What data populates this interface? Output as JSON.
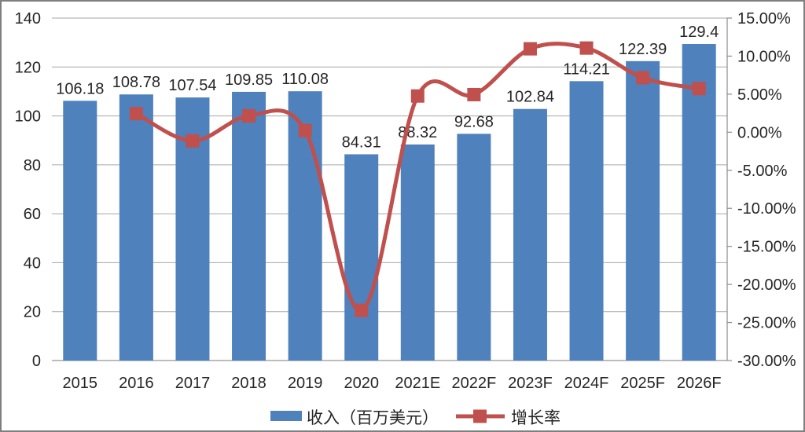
{
  "chart_data": {
    "type": "bar",
    "combo": "bar+line",
    "title": "",
    "categories": [
      "2015",
      "2016",
      "2017",
      "2018",
      "2019",
      "2020",
      "2021E",
      "2022F",
      "2023F",
      "2024F",
      "2025F",
      "2026F"
    ],
    "series": [
      {
        "name": "收入（百万美元）",
        "type": "bar",
        "axis": "left",
        "color": "#4f81bd",
        "values": [
          106.18,
          108.78,
          107.54,
          109.85,
          110.08,
          84.31,
          88.32,
          92.68,
          102.84,
          114.21,
          122.39,
          129.4
        ],
        "labels": [
          "106.18",
          "108.78",
          "107.54",
          "109.85",
          "110.08",
          "84.31",
          "88.32",
          "92.68",
          "102.84",
          "114.21",
          "122.39",
          "129.4"
        ]
      },
      {
        "name": "增长率",
        "type": "line",
        "axis": "right",
        "color": "#c0504d",
        "smooth": true,
        "marker": "square",
        "values": [
          null,
          2.45,
          -1.14,
          2.15,
          0.21,
          -23.41,
          4.76,
          4.94,
          10.96,
          11.06,
          7.16,
          5.73
        ]
      }
    ],
    "left_axis": {
      "min": 0,
      "max": 140,
      "step": 20,
      "tick_labels": [
        "140",
        "120",
        "100",
        "80",
        "60",
        "40",
        "20",
        "0"
      ]
    },
    "right_axis": {
      "min": -30,
      "max": 15,
      "step": 5,
      "tick_labels": [
        "15.00%",
        "10.00%",
        "5.00%",
        "0.00%",
        "-5.00%",
        "-10.00%",
        "-15.00%",
        "-20.00%",
        "-25.00%",
        "-30.00%"
      ]
    },
    "legend": {
      "position": "bottom",
      "items": [
        {
          "label": "收入（百万美元）",
          "swatch": "bar"
        },
        {
          "label": "增长率",
          "swatch": "line-marker"
        }
      ]
    },
    "grid": true,
    "colors": {
      "grid": "#a6a6a6",
      "axis": "#8c8c8c",
      "text": "#262626",
      "background": "#ffffff",
      "border": "#7f7f7f"
    }
  }
}
